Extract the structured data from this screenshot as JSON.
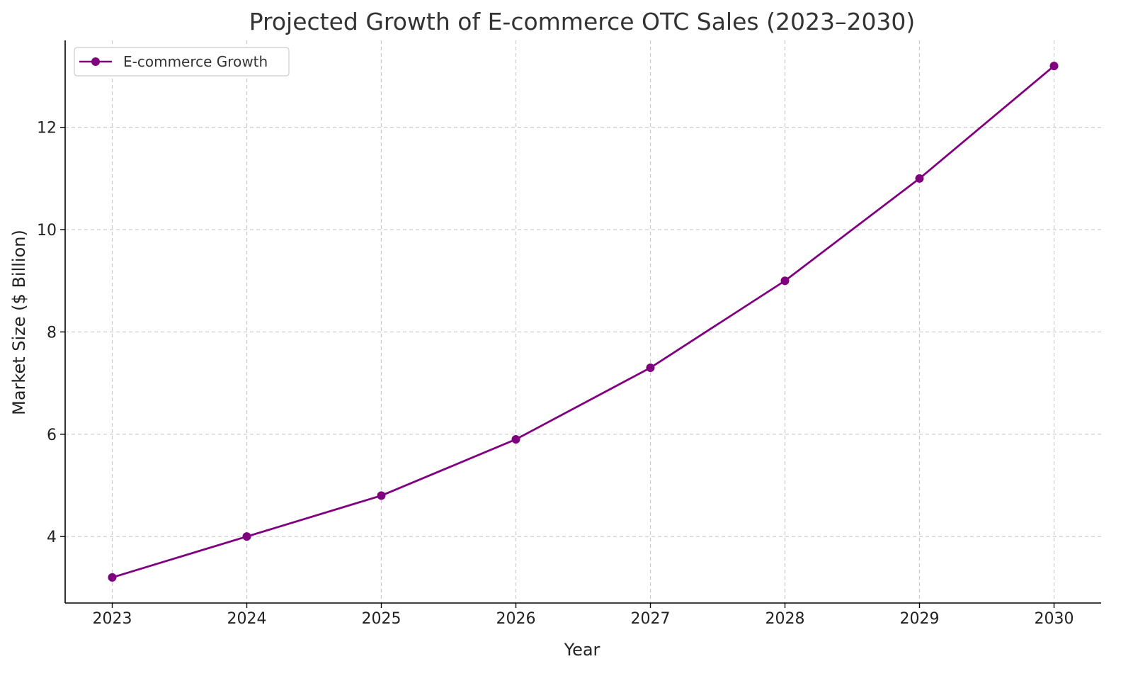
{
  "chart_data": {
    "type": "line",
    "title": "Projected Growth of E-commerce OTC Sales (2023–2030)",
    "xlabel": "Year",
    "ylabel": "Market Size ($ Billion)",
    "categories": [
      "2023",
      "2024",
      "2025",
      "2026",
      "2027",
      "2028",
      "2029",
      "2030"
    ],
    "x": [
      2023,
      2024,
      2025,
      2026,
      2027,
      2028,
      2029,
      2030
    ],
    "series": [
      {
        "name": "E-commerce Growth",
        "values": [
          3.2,
          4.0,
          4.8,
          5.9,
          7.3,
          9.0,
          11.0,
          13.2
        ],
        "color": "#800080",
        "marker": "circle"
      }
    ],
    "xlim": [
      2022.65,
      2030.35
    ],
    "ylim": [
      2.7,
      13.7
    ],
    "yticks": [
      4,
      6,
      8,
      10,
      12
    ],
    "ytick_labels": [
      "4",
      "6",
      "8",
      "10",
      "12"
    ],
    "grid": true,
    "legend_position": "top-left"
  }
}
